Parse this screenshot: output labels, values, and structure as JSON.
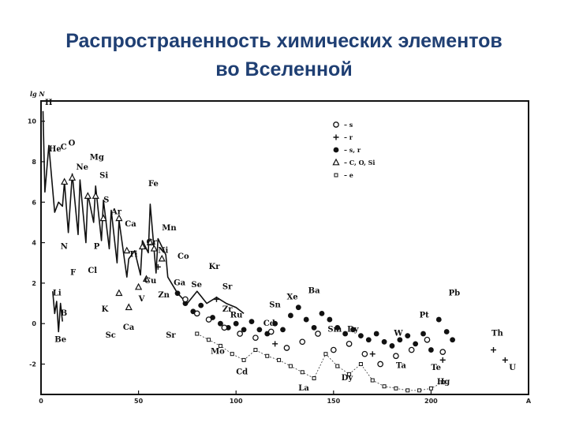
{
  "title": {
    "line1": "Распространенность химических элементов",
    "line2": "во Вселенной"
  },
  "chart_data": {
    "type": "scatter",
    "ylabel": "lg N",
    "xlabel": "",
    "xlim": [
      0,
      250
    ],
    "ylim": [
      -3.5,
      11
    ],
    "xticks": [
      {
        "v": 0,
        "label": "0"
      },
      {
        "v": 50,
        "label": "50"
      },
      {
        "v": 100,
        "label": "100"
      },
      {
        "v": 150,
        "label": "150"
      },
      {
        "v": 200,
        "label": "200"
      },
      {
        "v": 250,
        "label": "A"
      }
    ],
    "yticks": [
      {
        "v": 10,
        "label": "10"
      },
      {
        "v": 8,
        "label": "8"
      },
      {
        "v": 6,
        "label": "6"
      },
      {
        "v": 4,
        "label": "4"
      },
      {
        "v": 2,
        "label": "2"
      },
      {
        "v": 0,
        "label": "0"
      },
      {
        "v": -2,
        "label": "-2"
      }
    ],
    "legend": [
      {
        "marker": "open-circle",
        "label": "– s"
      },
      {
        "marker": "plus",
        "label": "– r"
      },
      {
        "marker": "filled-circle",
        "label": "– s, r"
      },
      {
        "marker": "triangle",
        "label": "– C, O, Si"
      },
      {
        "marker": "square",
        "label": "– e"
      }
    ],
    "legend_position": "top-right",
    "series": [
      {
        "marker": "line",
        "points": [
          [
            1,
            10.5
          ],
          [
            2,
            6.5
          ],
          [
            4,
            8.8
          ],
          [
            7,
            5.5
          ],
          [
            9,
            6.0
          ],
          [
            11,
            5.8
          ],
          [
            12,
            7.0
          ],
          [
            14,
            4.5
          ],
          [
            16,
            7.4
          ],
          [
            19,
            4.4
          ],
          [
            20,
            7.1
          ],
          [
            23,
            4.0
          ],
          [
            24,
            6.4
          ],
          [
            27,
            5.0
          ],
          [
            28,
            6.8
          ],
          [
            31,
            4.1
          ],
          [
            32,
            6.1
          ],
          [
            35,
            3.7
          ],
          [
            36,
            5.6
          ],
          [
            39,
            3.0
          ],
          [
            40,
            5.1
          ],
          [
            44,
            2.3
          ],
          [
            45,
            3.2
          ],
          [
            48,
            3.6
          ],
          [
            51,
            2.4
          ],
          [
            52,
            4.1
          ],
          [
            55,
            3.5
          ],
          [
            56,
            5.9
          ],
          [
            59,
            2.5
          ],
          [
            60,
            4.2
          ],
          [
            64,
            3.4
          ],
          [
            65,
            2.3
          ],
          [
            70,
            1.5
          ],
          [
            75,
            1.0
          ],
          [
            80,
            1.6
          ],
          [
            85,
            1.0
          ],
          [
            90,
            1.3
          ],
          [
            95,
            1.0
          ],
          [
            100,
            0.8
          ],
          [
            104,
            0.5
          ]
        ]
      },
      {
        "marker": "line",
        "points": [
          [
            6,
            1.6
          ],
          [
            7,
            0.5
          ],
          [
            8,
            1.1
          ],
          [
            9,
            -0.4
          ],
          [
            10,
            1.0
          ],
          [
            11,
            0.1
          ]
        ]
      },
      {
        "marker": "square",
        "points": [
          [
            80,
            -0.5
          ],
          [
            86,
            -0.8
          ],
          [
            92,
            -1.1
          ],
          [
            98,
            -1.5
          ],
          [
            104,
            -1.8
          ],
          [
            110,
            -1.3
          ],
          [
            116,
            -1.6
          ],
          [
            122,
            -1.8
          ],
          [
            128,
            -2.1
          ],
          [
            134,
            -2.4
          ],
          [
            140,
            -2.7
          ],
          [
            146,
            -1.5
          ],
          [
            152,
            -2.1
          ],
          [
            158,
            -2.5
          ],
          [
            164,
            -2.0
          ],
          [
            170,
            -2.8
          ],
          [
            176,
            -3.1
          ],
          [
            182,
            -3.2
          ],
          [
            188,
            -3.3
          ],
          [
            194,
            -3.3
          ],
          [
            200,
            -3.2
          ],
          [
            206,
            -2.9
          ]
        ]
      },
      {
        "marker": "filled-circle",
        "points": [
          [
            70,
            1.5
          ],
          [
            74,
            1.0
          ],
          [
            78,
            0.6
          ],
          [
            82,
            0.9
          ],
          [
            88,
            0.3
          ],
          [
            92,
            0.0
          ],
          [
            96,
            -0.2
          ],
          [
            100,
            0.0
          ],
          [
            104,
            -0.3
          ],
          [
            108,
            0.1
          ],
          [
            112,
            -0.3
          ],
          [
            116,
            -0.5
          ],
          [
            120,
            0.0
          ],
          [
            124,
            -0.3
          ],
          [
            128,
            0.4
          ],
          [
            132,
            0.8
          ],
          [
            136,
            0.2
          ],
          [
            140,
            -0.2
          ],
          [
            144,
            0.5
          ],
          [
            148,
            0.2
          ],
          [
            152,
            -0.2
          ],
          [
            156,
            -0.5
          ],
          [
            160,
            -0.3
          ],
          [
            164,
            -0.6
          ],
          [
            168,
            -0.8
          ],
          [
            172,
            -0.5
          ],
          [
            176,
            -0.9
          ],
          [
            180,
            -1.1
          ],
          [
            184,
            -0.8
          ],
          [
            188,
            -0.6
          ],
          [
            192,
            -1.0
          ],
          [
            196,
            -0.5
          ],
          [
            200,
            -1.3
          ],
          [
            204,
            0.2
          ],
          [
            208,
            -0.4
          ],
          [
            211,
            -0.8
          ]
        ]
      },
      {
        "marker": "open-circle",
        "points": [
          [
            74,
            1.2
          ],
          [
            80,
            0.5
          ],
          [
            86,
            0.2
          ],
          [
            94,
            -0.2
          ],
          [
            102,
            -0.5
          ],
          [
            110,
            -0.7
          ],
          [
            118,
            -0.4
          ],
          [
            126,
            -1.2
          ],
          [
            134,
            -0.9
          ],
          [
            142,
            -0.5
          ],
          [
            150,
            -1.3
          ],
          [
            158,
            -1.0
          ],
          [
            166,
            -1.5
          ],
          [
            174,
            -2.0
          ],
          [
            182,
            -1.6
          ],
          [
            190,
            -1.3
          ],
          [
            198,
            -0.8
          ],
          [
            206,
            -1.4
          ]
        ]
      },
      {
        "marker": "triangle",
        "points": [
          [
            12,
            7.0
          ],
          [
            16,
            7.2
          ],
          [
            24,
            6.3
          ],
          [
            28,
            6.3
          ],
          [
            32,
            5.2
          ],
          [
            40,
            5.2
          ],
          [
            44,
            3.6
          ],
          [
            52,
            3.8
          ],
          [
            56,
            4.0
          ],
          [
            58,
            3.7
          ],
          [
            62,
            3.2
          ],
          [
            40,
            1.5
          ],
          [
            45,
            0.8
          ],
          [
            50,
            1.8
          ],
          [
            54,
            2.2
          ]
        ]
      },
      {
        "marker": "plus",
        "points": [
          [
            232,
            -1.3
          ],
          [
            238,
            -1.8
          ],
          [
            206,
            -1.8
          ],
          [
            170,
            -1.5
          ],
          [
            120,
            -1.0
          ],
          [
            90,
            1.2
          ],
          [
            60,
            2.8
          ]
        ]
      }
    ],
    "labels": [
      {
        "text": "H",
        "x": 2,
        "y": 10.8
      },
      {
        "text": "He",
        "x": 4,
        "y": 8.5
      },
      {
        "text": "C",
        "x": 10,
        "y": 8.6
      },
      {
        "text": "O",
        "x": 14,
        "y": 8.8
      },
      {
        "text": "Ne",
        "x": 18,
        "y": 7.6
      },
      {
        "text": "Mg",
        "x": 25,
        "y": 8.1
      },
      {
        "text": "Si",
        "x": 30,
        "y": 7.2
      },
      {
        "text": "S",
        "x": 32,
        "y": 6.0
      },
      {
        "text": "Ar",
        "x": 36,
        "y": 5.4
      },
      {
        "text": "Ca",
        "x": 43,
        "y": 4.8
      },
      {
        "text": "Fe",
        "x": 55,
        "y": 6.8
      },
      {
        "text": "Cr",
        "x": 54,
        "y": 3.9
      },
      {
        "text": "Mn",
        "x": 62,
        "y": 4.6
      },
      {
        "text": "Ni",
        "x": 60,
        "y": 3.5
      },
      {
        "text": "Co",
        "x": 70,
        "y": 3.2
      },
      {
        "text": "Ti",
        "x": 45,
        "y": 3.3
      },
      {
        "text": "N",
        "x": 10,
        "y": 3.7
      },
      {
        "text": "P",
        "x": 27,
        "y": 3.7
      },
      {
        "text": "Cl",
        "x": 24,
        "y": 2.5
      },
      {
        "text": "F",
        "x": 15,
        "y": 2.4
      },
      {
        "text": "Cu",
        "x": 53,
        "y": 2.0
      },
      {
        "text": "Zn",
        "x": 60,
        "y": 1.3
      },
      {
        "text": "Ga",
        "x": 68,
        "y": 1.9
      },
      {
        "text": "Se",
        "x": 77,
        "y": 1.8
      },
      {
        "text": "Kr",
        "x": 86,
        "y": 2.7
      },
      {
        "text": "Sr",
        "x": 93,
        "y": 1.7
      },
      {
        "text": "Zr",
        "x": 93,
        "y": 0.6
      },
      {
        "text": "K",
        "x": 31,
        "y": 0.6
      },
      {
        "text": "Sc",
        "x": 33,
        "y": -0.7
      },
      {
        "text": "Ca",
        "x": 42,
        "y": -0.3
      },
      {
        "text": "V",
        "x": 50,
        "y": 1.1
      },
      {
        "text": "Li",
        "x": 6,
        "y": 1.4
      },
      {
        "text": "B",
        "x": 10,
        "y": 0.4
      },
      {
        "text": "Be",
        "x": 7,
        "y": -0.9
      },
      {
        "text": "Ru",
        "x": 97,
        "y": 0.3
      },
      {
        "text": "Sn",
        "x": 117,
        "y": 0.8
      },
      {
        "text": "Xe",
        "x": 126,
        "y": 1.2
      },
      {
        "text": "Ba",
        "x": 137,
        "y": 1.5
      },
      {
        "text": "Cd",
        "x": 114,
        "y": -0.1
      },
      {
        "text": "Sm",
        "x": 147,
        "y": -0.4
      },
      {
        "text": "Dy",
        "x": 157,
        "y": -0.4
      },
      {
        "text": "Mo",
        "x": 87,
        "y": -1.5
      },
      {
        "text": "Cd",
        "x": 100,
        "y": -2.5
      },
      {
        "text": "Sr",
        "x": 64,
        "y": -0.7
      },
      {
        "text": "La",
        "x": 132,
        "y": -3.3
      },
      {
        "text": "Dy",
        "x": 154,
        "y": -2.8
      },
      {
        "text": "W",
        "x": 181,
        "y": -0.6
      },
      {
        "text": "Pt",
        "x": 194,
        "y": 0.3
      },
      {
        "text": "Pb",
        "x": 209,
        "y": 1.4
      },
      {
        "text": "Ta",
        "x": 182,
        "y": -2.2
      },
      {
        "text": "Te",
        "x": 200,
        "y": -2.3
      },
      {
        "text": "Hg",
        "x": 203,
        "y": -3.0
      },
      {
        "text": "Th",
        "x": 231,
        "y": -0.6
      },
      {
        "text": "U",
        "x": 240,
        "y": -2.3
      }
    ]
  }
}
